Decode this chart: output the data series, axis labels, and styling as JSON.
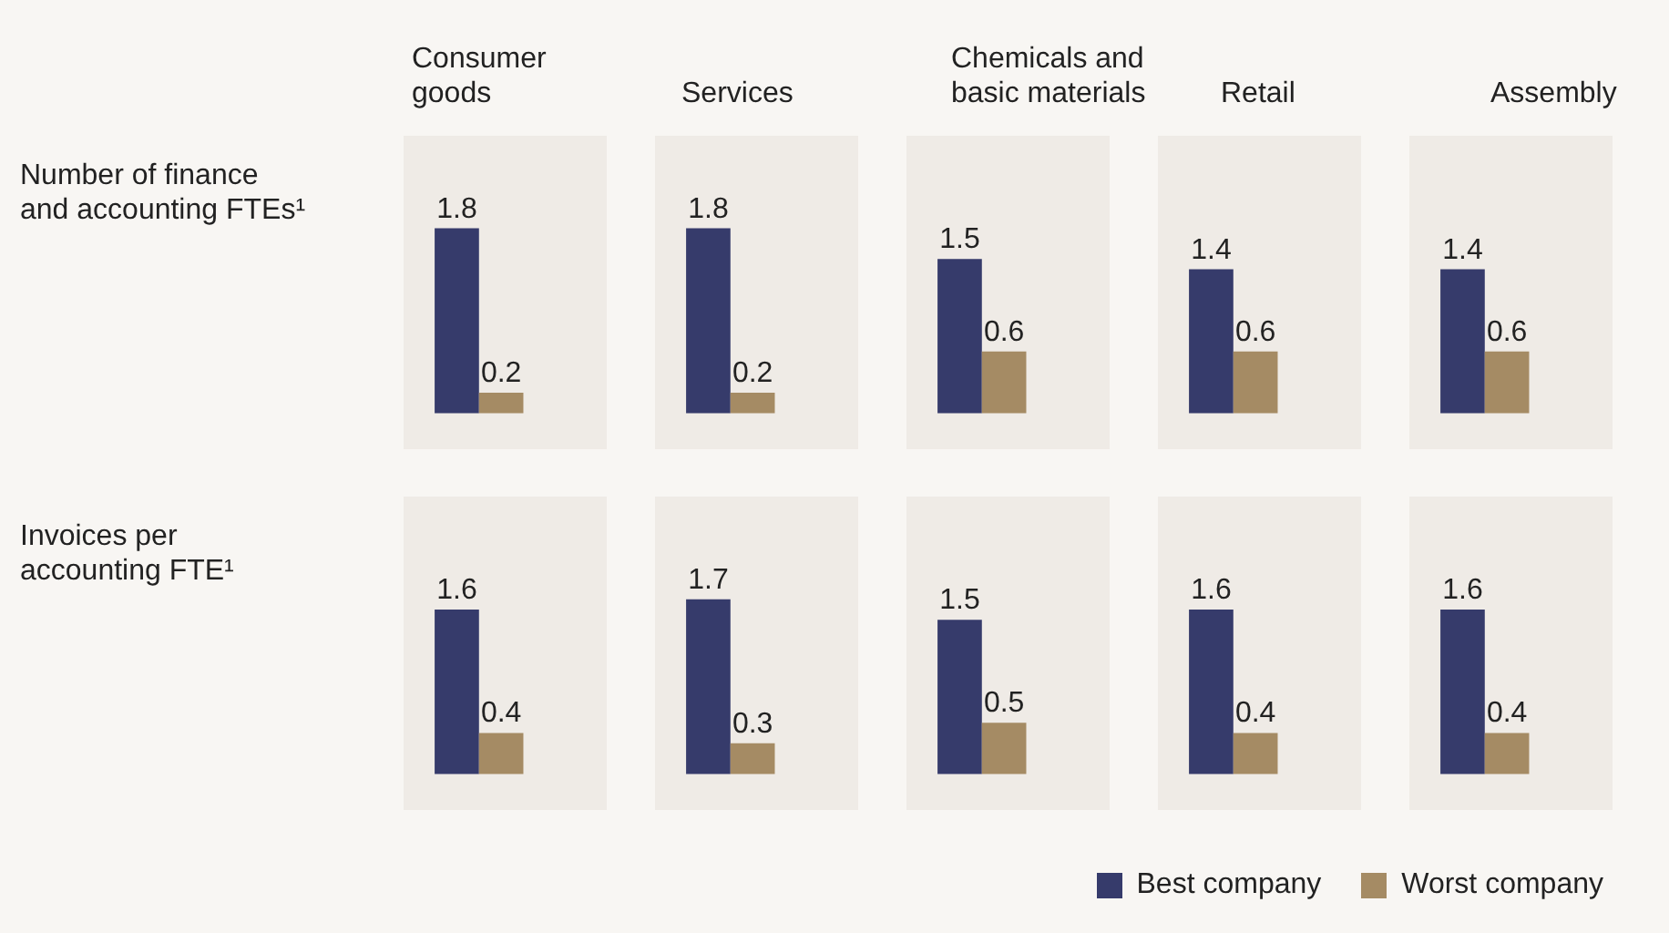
{
  "chart_data": [
    {
      "type": "bar",
      "title": "Consumer goods",
      "ylabel": "Number of finance\nand accounting FTEs¹",
      "categories": [
        null
      ],
      "ylim": [
        -0.35,
        2.7
      ],
      "tick_labels": false,
      "data_labels": true,
      "series": [
        {
          "color": "#363b6b",
          "values": [
            1.8
          ]
        },
        {
          "color": "#a58b64",
          "values": [
            0.2
          ]
        }
      ]
    },
    {
      "type": "bar",
      "title": "Services",
      "categories": [
        null
      ],
      "ylim": [
        -0.35,
        2.7
      ],
      "tick_labels": false,
      "data_labels": true,
      "series": [
        {
          "color": "#363b6b",
          "values": [
            1.8
          ]
        },
        {
          "color": "#a58b64",
          "values": [
            0.2
          ]
        }
      ]
    },
    {
      "type": "bar",
      "title": "Chemicals and\nbasic materials",
      "categories": [
        null
      ],
      "ylim": [
        -0.35,
        2.7
      ],
      "tick_labels": false,
      "data_labels": true,
      "series": [
        {
          "color": "#363b6b",
          "values": [
            1.5
          ]
        },
        {
          "color": "#a58b64",
          "values": [
            0.6
          ]
        }
      ]
    },
    {
      "type": "bar",
      "title": "Retail",
      "categories": [
        null
      ],
      "ylim": [
        -0.35,
        2.7
      ],
      "tick_labels": false,
      "data_labels": true,
      "series": [
        {
          "color": "#363b6b",
          "values": [
            1.4
          ]
        },
        {
          "color": "#a58b64",
          "values": [
            0.6
          ]
        }
      ]
    },
    {
      "type": "bar",
      "title": "Assembly",
      "categories": [
        null
      ],
      "ylim": [
        -0.35,
        2.7
      ],
      "tick_labels": false,
      "data_labels": true,
      "series": [
        {
          "color": "#363b6b",
          "values": [
            1.4
          ]
        },
        {
          "color": "#a58b64",
          "values": [
            0.6
          ]
        }
      ]
    },
    {
      "type": "bar",
      "ylabel": "Invoices per\naccounting FTE¹",
      "categories": [
        null
      ],
      "ylim": [
        -0.35,
        2.7
      ],
      "tick_labels": false,
      "data_labels": true,
      "series": [
        {
          "color": "#363b6b",
          "values": [
            1.6
          ]
        },
        {
          "color": "#a58b64",
          "values": [
            0.4
          ]
        }
      ]
    },
    {
      "type": "bar",
      "categories": [
        null
      ],
      "ylim": [
        -0.35,
        2.7
      ],
      "tick_labels": false,
      "data_labels": true,
      "series": [
        {
          "color": "#363b6b",
          "values": [
            1.7
          ]
        },
        {
          "color": "#a58b64",
          "values": [
            0.3
          ]
        }
      ]
    },
    {
      "type": "bar",
      "categories": [
        null
      ],
      "ylim": [
        -0.35,
        2.7
      ],
      "tick_labels": false,
      "data_labels": true,
      "series": [
        {
          "color": "#363b6b",
          "values": [
            1.5
          ]
        },
        {
          "color": "#a58b64",
          "values": [
            0.5
          ]
        }
      ]
    },
    {
      "type": "bar",
      "categories": [
        null
      ],
      "ylim": [
        -0.35,
        2.7
      ],
      "tick_labels": false,
      "data_labels": true,
      "series": [
        {
          "color": "#363b6b",
          "values": [
            1.6
          ]
        },
        {
          "color": "#a58b64",
          "values": [
            0.4
          ]
        }
      ]
    },
    {
      "type": "bar",
      "categories": [
        null
      ],
      "ylim": [
        -0.35,
        2.7
      ],
      "tick_labels": false,
      "data_labels": true,
      "legend": "bottom left",
      "series": [
        {
          "name": "Best company",
          "color": "#363b6b",
          "values": [
            1.6
          ]
        },
        {
          "name": "Worst company",
          "color": "#a58b64",
          "values": [
            0.4
          ]
        }
      ]
    }
  ]
}
